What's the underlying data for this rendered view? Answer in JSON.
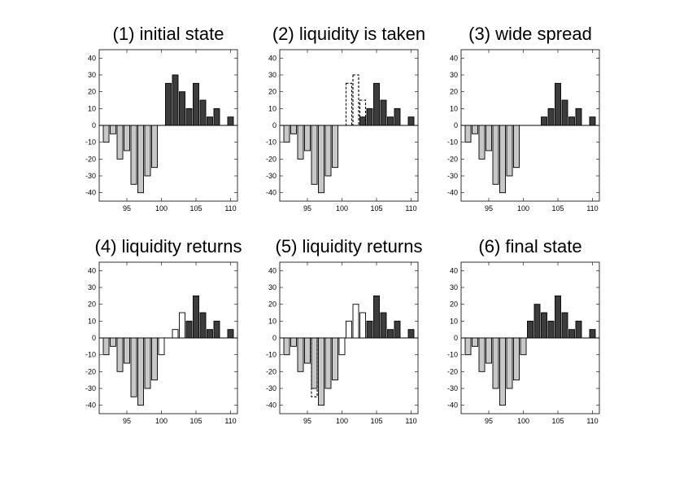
{
  "chart_data": [
    {
      "type": "bar",
      "title": "(1) initial state",
      "x": [
        92,
        93,
        94,
        95,
        96,
        97,
        98,
        99,
        101,
        102,
        103,
        104,
        105,
        106,
        107,
        108,
        110
      ],
      "values": [
        -10,
        -5,
        -20,
        -15,
        -35,
        -40,
        -30,
        -25,
        25,
        30,
        20,
        10,
        25,
        15,
        5,
        10,
        5
      ],
      "outlined": [],
      "xlim": [
        91,
        111
      ],
      "ylim": [
        -45,
        45
      ],
      "xticks": [
        95,
        100,
        105,
        110
      ],
      "yticks": [
        40,
        30,
        20,
        10,
        0,
        -10,
        -20,
        -30,
        -40
      ],
      "colors": {
        "bid": "#c8c8c8",
        "ask": "#3c3c3c",
        "returned": "#ffffff"
      }
    },
    {
      "type": "bar",
      "title": "(2) liquidity is taken",
      "x": [
        92,
        93,
        94,
        95,
        96,
        97,
        98,
        99,
        103,
        104,
        105,
        106,
        107,
        108,
        110
      ],
      "values": [
        -10,
        -5,
        -20,
        -15,
        -35,
        -40,
        -30,
        -25,
        5,
        10,
        25,
        15,
        5,
        10,
        5
      ],
      "outlined": [
        {
          "x": 101,
          "value": 25
        },
        {
          "x": 102,
          "value": 30
        },
        {
          "x": 103,
          "value": 15
        }
      ],
      "xlim": [
        91,
        111
      ],
      "ylim": [
        -45,
        45
      ],
      "xticks": [
        95,
        100,
        105,
        110
      ],
      "yticks": [
        40,
        30,
        20,
        10,
        0,
        -10,
        -20,
        -30,
        -40
      ],
      "colors": {
        "bid": "#c8c8c8",
        "ask": "#3c3c3c",
        "returned": "#ffffff"
      }
    },
    {
      "type": "bar",
      "title": "(3) wide spread",
      "x": [
        92,
        93,
        94,
        95,
        96,
        97,
        98,
        99,
        103,
        104,
        105,
        106,
        107,
        108,
        110
      ],
      "values": [
        -10,
        -5,
        -20,
        -15,
        -35,
        -40,
        -30,
        -25,
        5,
        10,
        25,
        15,
        5,
        10,
        5
      ],
      "outlined": [],
      "xlim": [
        91,
        111
      ],
      "ylim": [
        -45,
        45
      ],
      "xticks": [
        95,
        100,
        105,
        110
      ],
      "yticks": [
        40,
        30,
        20,
        10,
        0,
        -10,
        -20,
        -30,
        -40
      ],
      "colors": {
        "bid": "#c8c8c8",
        "ask": "#3c3c3c",
        "returned": "#ffffff"
      }
    },
    {
      "type": "bar",
      "title": "(4) liquidity returns",
      "x": [
        92,
        93,
        94,
        95,
        96,
        97,
        98,
        99,
        100,
        102,
        103,
        104,
        105,
        106,
        107,
        108,
        110
      ],
      "values": [
        -10,
        -5,
        -20,
        -15,
        -35,
        -40,
        -30,
        -25,
        -10,
        5,
        15,
        10,
        25,
        15,
        5,
        10,
        5
      ],
      "returned": [
        100,
        102,
        103
      ],
      "outlined": [],
      "xlim": [
        91,
        111
      ],
      "ylim": [
        -45,
        45
      ],
      "xticks": [
        95,
        100,
        105,
        110
      ],
      "yticks": [
        40,
        30,
        20,
        10,
        0,
        -10,
        -20,
        -30,
        -40
      ],
      "colors": {
        "bid": "#c8c8c8",
        "ask": "#3c3c3c",
        "returned": "#ffffff"
      }
    },
    {
      "type": "bar",
      "title": "(5) liquidity returns",
      "x": [
        92,
        93,
        94,
        95,
        96,
        97,
        98,
        99,
        100,
        101,
        102,
        103,
        104,
        105,
        106,
        107,
        108,
        110
      ],
      "values": [
        -10,
        -5,
        -20,
        -15,
        -30,
        -40,
        -30,
        -25,
        -10,
        10,
        20,
        15,
        10,
        25,
        15,
        5,
        10,
        5
      ],
      "returned": [
        100,
        101,
        102,
        103
      ],
      "outlined": [
        {
          "x": 96,
          "value": -35
        }
      ],
      "xlim": [
        91,
        111
      ],
      "ylim": [
        -45,
        45
      ],
      "xticks": [
        95,
        100,
        105,
        110
      ],
      "yticks": [
        40,
        30,
        20,
        10,
        0,
        -10,
        -20,
        -30,
        -40
      ],
      "colors": {
        "bid": "#c8c8c8",
        "ask": "#3c3c3c",
        "returned": "#ffffff"
      }
    },
    {
      "type": "bar",
      "title": "(6) final state",
      "x": [
        92,
        93,
        94,
        95,
        96,
        97,
        98,
        99,
        100,
        101,
        102,
        103,
        104,
        105,
        106,
        107,
        108,
        110
      ],
      "values": [
        -10,
        -5,
        -20,
        -15,
        -30,
        -40,
        -30,
        -25,
        -10,
        10,
        20,
        15,
        10,
        25,
        15,
        5,
        10,
        5
      ],
      "outlined": [],
      "xlim": [
        91,
        111
      ],
      "ylim": [
        -45,
        45
      ],
      "xticks": [
        95,
        100,
        105,
        110
      ],
      "yticks": [
        40,
        30,
        20,
        10,
        0,
        -10,
        -20,
        -30,
        -40
      ],
      "colors": {
        "bid": "#c8c8c8",
        "ask": "#3c3c3c",
        "returned": "#ffffff"
      }
    }
  ]
}
